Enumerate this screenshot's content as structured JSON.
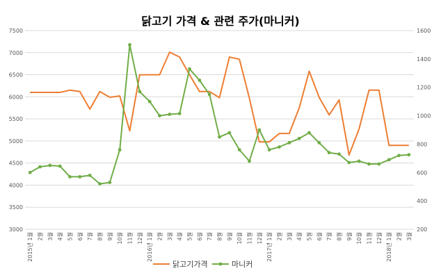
{
  "chart_data": {
    "type": "line",
    "title": "닭고기 가격 & 관련 주가(마니커)",
    "legend_position": "bottom",
    "grid": true,
    "categories": [
      "2015년 1월",
      "2월",
      "3월",
      "4월",
      "5월",
      "6월",
      "7월",
      "8월",
      "9월",
      "10월",
      "11월",
      "12월",
      "2016년 1월",
      "2월",
      "3월",
      "4월",
      "5월",
      "6월",
      "7월",
      "8월",
      "9월",
      "10월",
      "11월",
      "12월",
      "2017년 1월",
      "2월",
      "3월",
      "4월",
      "5월",
      "6월",
      "7월",
      "8월",
      "9월",
      "10월",
      "11월",
      "12월",
      "2018년 1월",
      "2월",
      "3월"
    ],
    "y_left": {
      "min": 3000,
      "max": 7500,
      "step": 500
    },
    "y_right": {
      "min": 200,
      "max": 1600,
      "step": 200
    },
    "series": [
      {
        "name": "닭고기가격",
        "axis": "left",
        "color": "#ED7D31",
        "values": [
          6100,
          6100,
          6100,
          6100,
          6150,
          6120,
          5720,
          6120,
          5990,
          6020,
          5230,
          6500,
          6500,
          6500,
          7010,
          6900,
          6500,
          6120,
          6120,
          5980,
          6900,
          6850,
          5970,
          4980,
          4980,
          5170,
          5170,
          5750,
          6580,
          5990,
          5590,
          5930,
          4680,
          5270,
          6150,
          6150,
          4900,
          4900,
          4900
        ]
      },
      {
        "name": "마니커",
        "axis": "right",
        "color": "#70AD47",
        "values": [
          600,
          640,
          650,
          645,
          570,
          570,
          580,
          520,
          530,
          760,
          1500,
          1170,
          1100,
          1000,
          1010,
          1015,
          1330,
          1250,
          1150,
          850,
          880,
          760,
          680,
          900,
          760,
          780,
          810,
          840,
          880,
          810,
          740,
          730,
          670,
          680,
          660,
          660,
          690,
          720,
          725
        ]
      }
    ]
  }
}
